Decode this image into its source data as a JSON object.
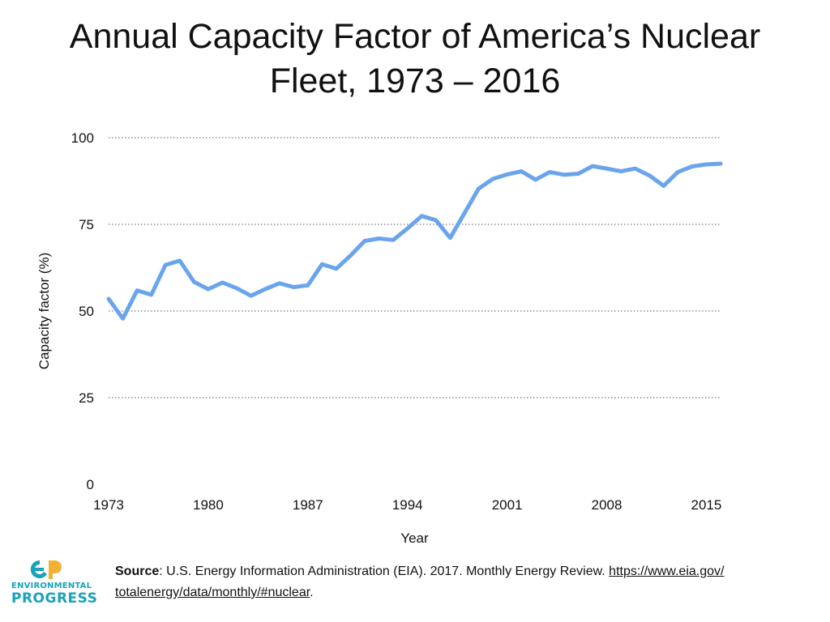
{
  "title_line1": "Annual Capacity Factor of America’s Nuclear",
  "title_line2": "Fleet, 1973 – 2016",
  "colors": {
    "line": "#6aa4ec",
    "grid": "#555555",
    "logo": "#19a2b9",
    "logo_accent": "#f2b134"
  },
  "chart_data": {
    "type": "line",
    "title": "Annual Capacity Factor of America’s Nuclear Fleet, 1973 – 2016",
    "xlabel": "Year",
    "ylabel": "Capacity factor (%)",
    "xlim": [
      1973,
      2016
    ],
    "ylim": [
      0,
      100
    ],
    "yticks": [
      0,
      25,
      50,
      75,
      100
    ],
    "xticks": [
      1973,
      1980,
      1987,
      1994,
      2001,
      2008,
      2015
    ],
    "grid": true,
    "series": [
      {
        "name": "Capacity factor",
        "x": [
          1973,
          1974,
          1975,
          1976,
          1977,
          1978,
          1979,
          1980,
          1981,
          1982,
          1983,
          1984,
          1985,
          1986,
          1987,
          1988,
          1989,
          1990,
          1991,
          1992,
          1993,
          1994,
          1995,
          1996,
          1997,
          1998,
          1999,
          2000,
          2001,
          2002,
          2003,
          2004,
          2005,
          2006,
          2007,
          2008,
          2009,
          2010,
          2011,
          2012,
          2013,
          2014,
          2015,
          2016
        ],
        "y": [
          53.5,
          47.8,
          55.9,
          54.7,
          63.3,
          64.5,
          58.4,
          56.3,
          58.2,
          56.6,
          54.4,
          56.3,
          58.0,
          56.9,
          57.4,
          63.5,
          62.2,
          66.0,
          70.2,
          70.9,
          70.5,
          73.8,
          77.4,
          76.2,
          71.1,
          78.2,
          85.3,
          88.1,
          89.4,
          90.3,
          87.9,
          90.1,
          89.3,
          89.6,
          91.8,
          91.1,
          90.3,
          91.1,
          89.1,
          86.1,
          90.1,
          91.7,
          92.3,
          92.5
        ]
      }
    ]
  },
  "footer": {
    "source_label": "Source",
    "source_text": ": U.S. Energy Information Administration (EIA). 2017. Monthly Energy Review. ",
    "link_part1": "https://www.eia.gov/",
    "link_part2": "totalenergy/data/monthly/#nuclear",
    "end": "."
  },
  "logo": {
    "line1": "ENVIRONMENTAL",
    "line2": "PROGRESS"
  }
}
